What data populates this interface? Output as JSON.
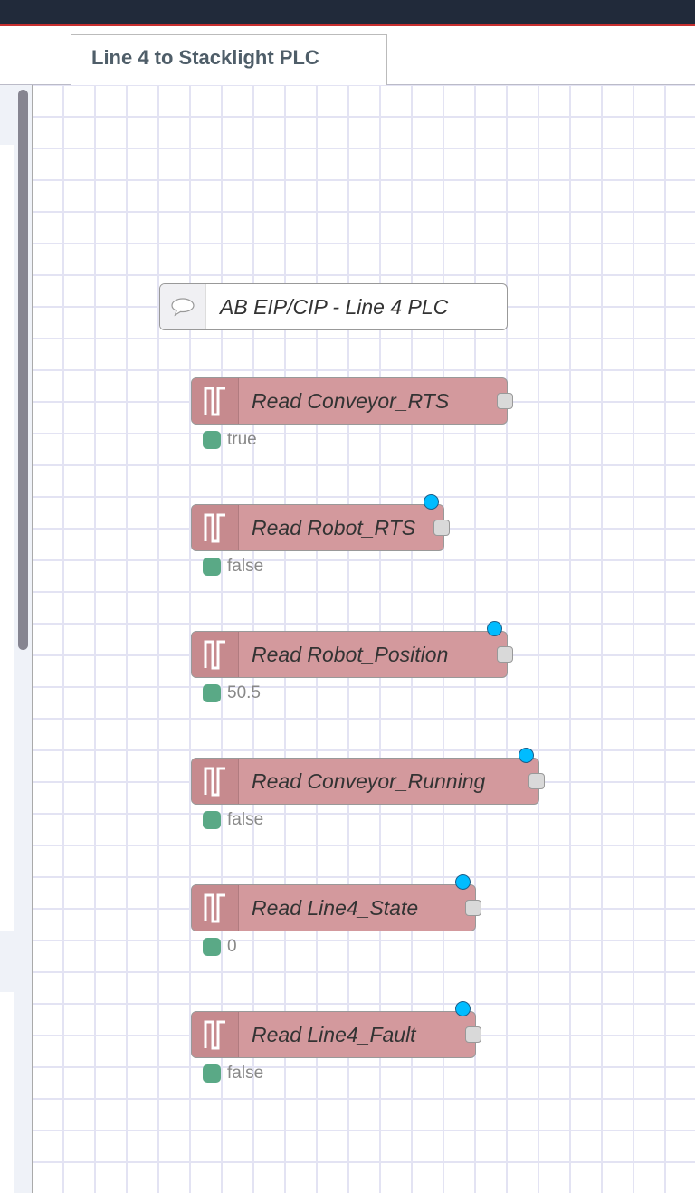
{
  "tabs": [
    {
      "label": "Line 4 to Stacklight PLC",
      "active": true
    }
  ],
  "comment": {
    "label": "AB EIP/CIP - Line 4 PLC",
    "icon": "comment-icon"
  },
  "colors": {
    "node": "#d3999d",
    "status": "#5aa986",
    "changed": "#00bcff",
    "header": "#212a3a",
    "accent": "#c72f2f"
  },
  "nodes": [
    {
      "label": "Read Conveyor_RTS",
      "status": "true",
      "changed": false,
      "icon": "pulse-icon"
    },
    {
      "label": "Read Robot_RTS",
      "status": "false",
      "changed": true,
      "icon": "pulse-icon"
    },
    {
      "label": "Read Robot_Position",
      "status": "50.5",
      "changed": true,
      "icon": "pulse-icon"
    },
    {
      "label": "Read Conveyor_Running",
      "status": "false",
      "changed": true,
      "icon": "pulse-icon"
    },
    {
      "label": "Read Line4_State",
      "status": "0",
      "changed": true,
      "icon": "pulse-icon"
    },
    {
      "label": "Read Line4_Fault",
      "status": "false",
      "changed": true,
      "icon": "pulse-icon"
    }
  ]
}
